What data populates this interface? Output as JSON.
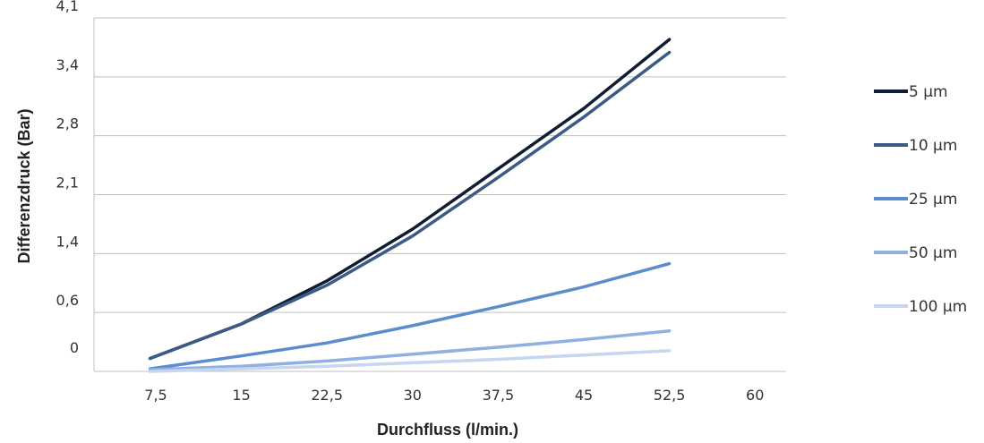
{
  "chart_data": {
    "type": "line",
    "xlabel": "Durchfluss (l/min.)",
    "ylabel": "Differenzdruck (Bar)",
    "x_ticks": [
      "7,5",
      "15",
      "22,5",
      "30",
      "37,5",
      "45",
      "52,5",
      "60"
    ],
    "y_ticks": [
      "0",
      "0,6",
      "1,4",
      "2,1",
      "2,8",
      "3,4",
      "4,1"
    ],
    "grid": "horizontal",
    "legend": "right",
    "series": [
      {
        "name": "5 µm",
        "color": "#0f1d33",
        "x": [
          7,
          15,
          22.5,
          30,
          37.5,
          45,
          52.5
        ],
        "y": [
          0.15,
          0.55,
          1.05,
          1.65,
          2.35,
          3.05,
          3.85
        ]
      },
      {
        "name": "10 µm",
        "color": "#3b5a86",
        "x": [
          7,
          15,
          22.5,
          30,
          37.5,
          45,
          52.5
        ],
        "y": [
          0.15,
          0.55,
          1.0,
          1.57,
          2.25,
          2.95,
          3.7
        ]
      },
      {
        "name": "25 µm",
        "color": "#5b8ccc",
        "x": [
          7,
          15,
          22.5,
          30,
          37.5,
          45,
          52.5
        ],
        "y": [
          0.03,
          0.18,
          0.33,
          0.53,
          0.75,
          0.98,
          1.25
        ]
      },
      {
        "name": "50 µm",
        "color": "#8fb0e0",
        "x": [
          7,
          15,
          22.5,
          30,
          37.5,
          45,
          52.5
        ],
        "y": [
          0.02,
          0.06,
          0.12,
          0.2,
          0.28,
          0.37,
          0.47
        ]
      },
      {
        "name": "100 µm",
        "color": "#c5d6ee",
        "x": [
          7,
          15,
          22.5,
          30,
          37.5,
          45,
          52.5
        ],
        "y": [
          0.0,
          0.03,
          0.06,
          0.1,
          0.14,
          0.19,
          0.24
        ]
      }
    ]
  }
}
